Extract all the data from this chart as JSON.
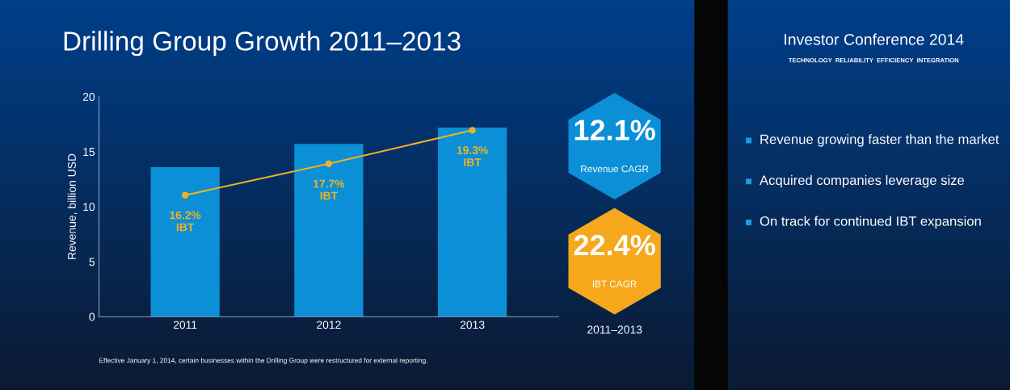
{
  "chart_data": {
    "type": "bar",
    "title": "Drilling Group Growth 2011–2013",
    "ylabel": "Revenue, billion USD",
    "categories": [
      "2011",
      "2012",
      "2013"
    ],
    "series": [
      {
        "color": "#0b8fd6",
        "values": [
          13.6,
          15.7,
          17.2
        ]
      },
      {
        "type": "line",
        "axis": "y2",
        "color": "#f2b124",
        "values": [
          16.2,
          17.7,
          19.3
        ],
        "value_labels": [
          "16.2%\nIBT",
          "17.7%\nIBT",
          "19.3%\nIBT"
        ]
      }
    ],
    "ylim": [
      0,
      20
    ],
    "yticks": [
      0,
      5,
      10,
      15,
      20
    ],
    "y2lim": [
      10.4,
      20.9
    ],
    "marker": "circle",
    "line_style": "solid",
    "annotations": [
      "12.1%",
      "Revenue CAGR",
      "22.4%",
      "IBT CAGR",
      "2011–2013",
      "Investor Conference 2014",
      "TECHNOLOGY  RELIABILITY  EFFICIENCY  INTEGRATION",
      "Revenue growing faster than the market",
      "Acquired companies leverage size",
      "On track for continued IBT expansion",
      "Effective January 1, 2014, certain businesses within the Drilling Group were restructured for external reporting."
    ]
  }
}
